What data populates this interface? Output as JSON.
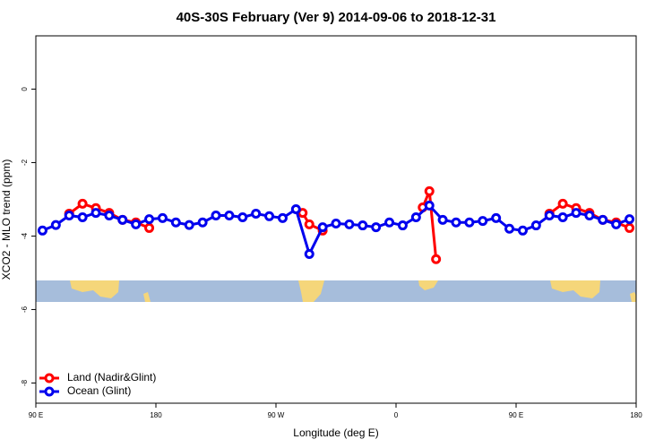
{
  "chart_data": {
    "type": "line",
    "title": "40S-30S February (Ver 9)   2014-09-06 to 2018-12-31",
    "x_label": "Longitude (deg E)",
    "y_label": "XCO2 - MLO trend (ppm)",
    "xlim": [
      90,
      540
    ],
    "ylim": [
      -8.55,
      1.45
    ],
    "xticks": [
      {
        "value": 90,
        "label": "90 E"
      },
      180,
      {
        "value": 270,
        "label": "90 W"
      },
      {
        "value": 360,
        "label": "0"
      },
      {
        "value": 450,
        "label": "90 E"
      },
      {
        "value": 540,
        "label": "180"
      }
    ],
    "yticks": [
      0,
      -2,
      -4,
      -6,
      -8
    ],
    "legend": "bottom-left",
    "series": [
      {
        "name": "Land (Nadir&Glint)",
        "color": "#ff0000",
        "x": [
          115,
          125,
          135,
          145,
          155,
          165,
          175,
          230,
          290,
          295,
          305,
          350,
          380,
          385,
          390,
          430,
          475,
          485,
          495,
          505,
          515,
          525,
          535
        ],
        "values": [
          -3.39,
          -3.12,
          -3.24,
          -3.37,
          -3.56,
          -3.63,
          -3.78,
          null,
          -3.37,
          -3.68,
          -3.85,
          null,
          -3.22,
          -2.78,
          -4.63,
          null,
          -3.39,
          -3.12,
          -3.24,
          -3.37,
          -3.56,
          -3.63,
          -3.78
        ]
      },
      {
        "name": "Ocean (Glint)",
        "color": "#0000ee",
        "x": [
          95,
          105,
          115,
          125,
          135,
          145,
          155,
          165,
          175,
          185,
          195,
          205,
          215,
          225,
          235,
          245,
          255,
          265,
          275,
          285,
          295,
          305,
          315,
          325,
          335,
          345,
          355,
          365,
          375,
          385,
          395,
          405,
          415,
          425,
          435,
          445,
          455,
          465,
          475,
          485,
          495,
          505,
          515,
          525,
          535
        ],
        "values": [
          -3.85,
          -3.7,
          -3.44,
          -3.49,
          -3.37,
          -3.44,
          -3.56,
          -3.68,
          -3.54,
          -3.51,
          -3.63,
          -3.7,
          -3.63,
          -3.44,
          -3.44,
          -3.49,
          -3.39,
          -3.46,
          -3.51,
          -3.27,
          -4.49,
          -3.76,
          -3.66,
          -3.68,
          -3.71,
          -3.76,
          -3.63,
          -3.71,
          -3.49,
          -3.17,
          -3.56,
          -3.63,
          -3.63,
          -3.59,
          -3.51,
          -3.8,
          -3.85,
          -3.71,
          -3.44,
          -3.49,
          -3.37,
          -3.44,
          -3.56,
          -3.68,
          -3.54
        ]
      }
    ]
  }
}
